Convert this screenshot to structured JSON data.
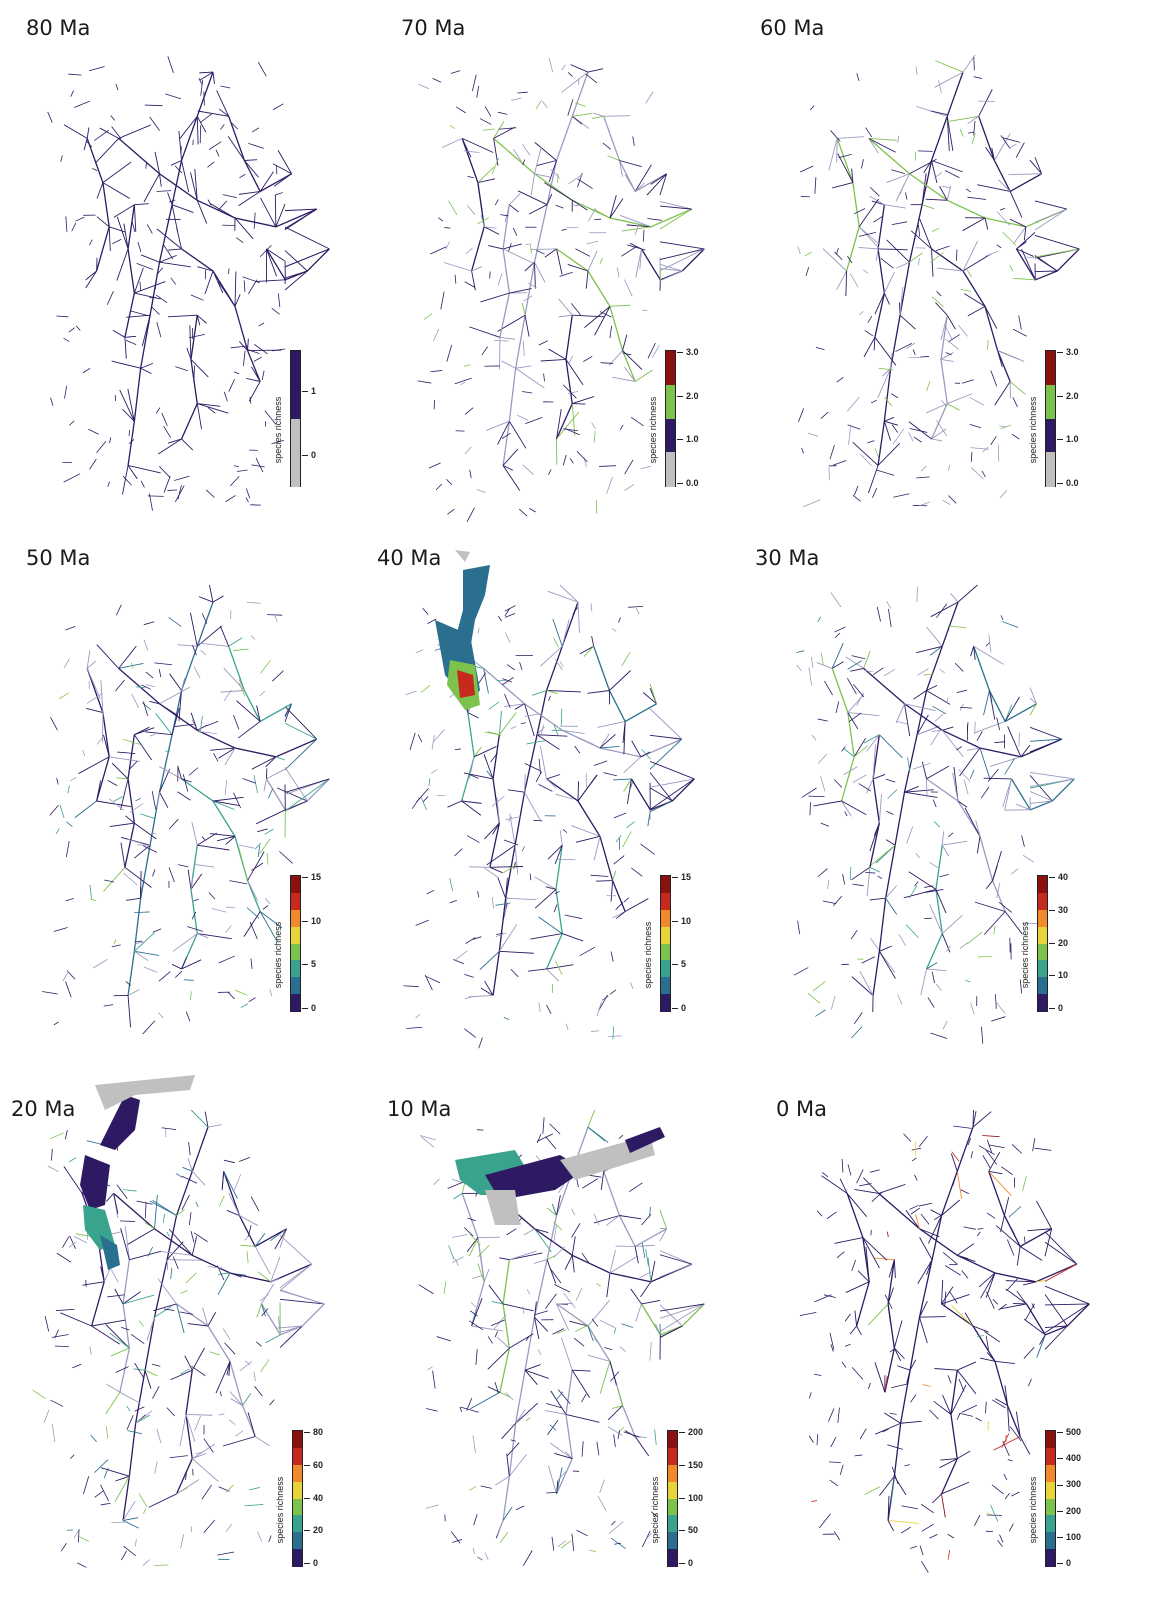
{
  "colors": {
    "river_default": "#2d1a63",
    "river_faint": "#9a9ac0",
    "absent": "#c0c0c0",
    "viridis_like": [
      "#2d1a63",
      "#2a6f8f",
      "#3aa38e",
      "#7cc24d",
      "#e7d33a",
      "#f08a2c",
      "#c62a1e",
      "#8b1010"
    ]
  },
  "panels": [
    {
      "title": "80 Ma",
      "legend": {
        "label": "species richness",
        "ticks": [
          "1",
          "0"
        ],
        "scale": "categorical",
        "colors": [
          "#2d1a63",
          "#c0c0c0"
        ]
      }
    },
    {
      "title": "70 Ma",
      "legend": {
        "label": "species richness",
        "ticks": [
          "3.0",
          "2.0",
          "1.0",
          "0.0"
        ],
        "scale": "categorical",
        "colors": [
          "#8b1010",
          "#7cc24d",
          "#2d1a63",
          "#c0c0c0"
        ]
      }
    },
    {
      "title": "60 Ma",
      "legend": {
        "label": "species richness",
        "ticks": [
          "3.0",
          "2.0",
          "1.0",
          "0.0"
        ],
        "scale": "categorical",
        "colors": [
          "#8b1010",
          "#7cc24d",
          "#2d1a63",
          "#c0c0c0"
        ]
      }
    },
    {
      "title": "50 Ma",
      "legend": {
        "label": "species richness",
        "ticks": [
          "15",
          "10",
          "5",
          "0"
        ],
        "scale": "continuous"
      }
    },
    {
      "title": "40 Ma",
      "legend": {
        "label": "species richness",
        "ticks": [
          "15",
          "10",
          "5",
          "0"
        ],
        "scale": "continuous"
      }
    },
    {
      "title": "30 Ma",
      "legend": {
        "label": "species richness",
        "ticks": [
          "40",
          "30",
          "20",
          "10",
          "0"
        ],
        "scale": "continuous"
      }
    },
    {
      "title": "20 Ma",
      "legend": {
        "label": "species richness",
        "ticks": [
          "80",
          "60",
          "40",
          "20",
          "0"
        ],
        "scale": "continuous"
      }
    },
    {
      "title": "10 Ma",
      "legend": {
        "label": "species richness",
        "ticks": [
          "200",
          "150",
          "100",
          "50",
          "0"
        ],
        "scale": "continuous"
      }
    },
    {
      "title": "0 Ma",
      "legend": {
        "label": "species richness",
        "ticks": [
          "500",
          "400",
          "300",
          "200",
          "100",
          "0"
        ],
        "scale": "continuous"
      }
    }
  ]
}
